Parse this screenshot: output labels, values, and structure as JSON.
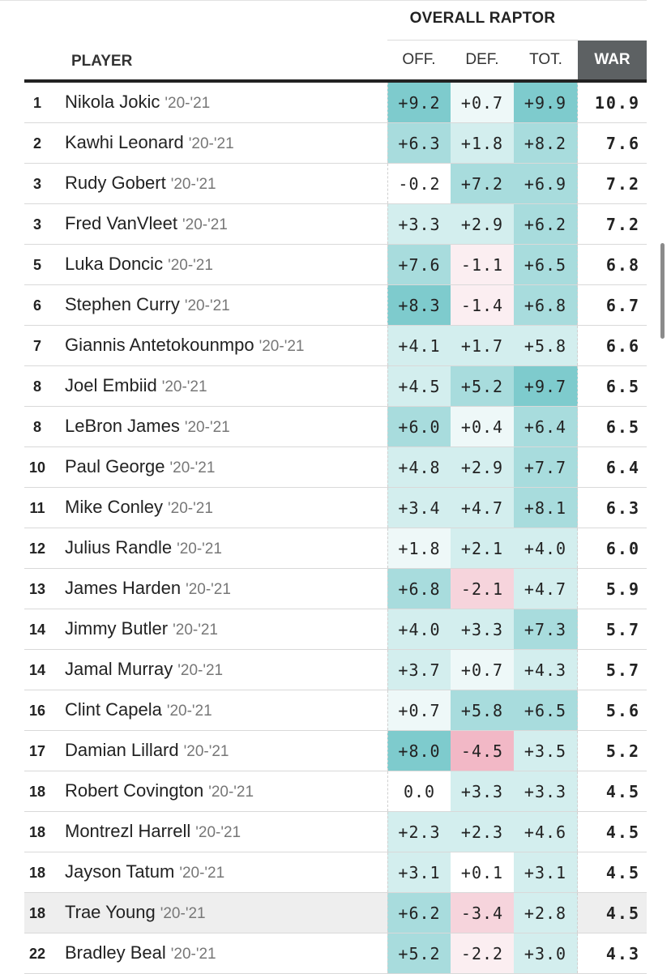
{
  "header": {
    "group": "OVERALL RAPTOR",
    "player": "PLAYER",
    "off": "OFF.",
    "def": "DEF.",
    "tot": "TOT.",
    "war": "WAR"
  },
  "colors": {
    "pos_strong": "#7ecbcd",
    "pos_mid": "#a8dcdd",
    "pos_light": "#d3eeee",
    "pos_faint": "#eef8f8",
    "neg_faint": "#fbeef1",
    "neg_light": "#f6d4dc",
    "neg_mid": "#f2b8c6",
    "header_war_bg": "#5d6163"
  },
  "rows": [
    {
      "rank": "1",
      "name": "Nikola Jokic",
      "season": "'20-'21",
      "off": "+9.2",
      "def": "+0.7",
      "tot": "+9.9",
      "war": "10.9",
      "offc": "pos_strong",
      "defc": "pos_faint",
      "totc": "pos_strong"
    },
    {
      "rank": "2",
      "name": "Kawhi Leonard",
      "season": "'20-'21",
      "off": "+6.3",
      "def": "+1.8",
      "tot": "+8.2",
      "war": "7.6",
      "offc": "pos_mid",
      "defc": "pos_light",
      "totc": "pos_mid"
    },
    {
      "rank": "3",
      "name": "Rudy Gobert",
      "season": "'20-'21",
      "off": "-0.2",
      "def": "+7.2",
      "tot": "+6.9",
      "war": "7.2",
      "offc": "none",
      "defc": "pos_mid",
      "totc": "pos_mid"
    },
    {
      "rank": "3",
      "name": "Fred VanVleet",
      "season": "'20-'21",
      "off": "+3.3",
      "def": "+2.9",
      "tot": "+6.2",
      "war": "7.2",
      "offc": "pos_light",
      "defc": "pos_light",
      "totc": "pos_mid"
    },
    {
      "rank": "5",
      "name": "Luka Doncic",
      "season": "'20-'21",
      "off": "+7.6",
      "def": "-1.1",
      "tot": "+6.5",
      "war": "6.8",
      "offc": "pos_mid",
      "defc": "neg_faint",
      "totc": "pos_mid"
    },
    {
      "rank": "6",
      "name": "Stephen Curry",
      "season": "'20-'21",
      "off": "+8.3",
      "def": "-1.4",
      "tot": "+6.8",
      "war": "6.7",
      "offc": "pos_strong",
      "defc": "neg_faint",
      "totc": "pos_mid"
    },
    {
      "rank": "7",
      "name": "Giannis Antetokounmpo",
      "season": "'20-'21",
      "off": "+4.1",
      "def": "+1.7",
      "tot": "+5.8",
      "war": "6.6",
      "offc": "pos_light",
      "defc": "pos_light",
      "totc": "pos_light"
    },
    {
      "rank": "8",
      "name": "Joel Embiid",
      "season": "'20-'21",
      "off": "+4.5",
      "def": "+5.2",
      "tot": "+9.7",
      "war": "6.5",
      "offc": "pos_light",
      "defc": "pos_mid",
      "totc": "pos_strong"
    },
    {
      "rank": "8",
      "name": "LeBron James",
      "season": "'20-'21",
      "off": "+6.0",
      "def": "+0.4",
      "tot": "+6.4",
      "war": "6.5",
      "offc": "pos_mid",
      "defc": "pos_faint",
      "totc": "pos_mid"
    },
    {
      "rank": "10",
      "name": "Paul George",
      "season": "'20-'21",
      "off": "+4.8",
      "def": "+2.9",
      "tot": "+7.7",
      "war": "6.4",
      "offc": "pos_light",
      "defc": "pos_light",
      "totc": "pos_mid"
    },
    {
      "rank": "11",
      "name": "Mike Conley",
      "season": "'20-'21",
      "off": "+3.4",
      "def": "+4.7",
      "tot": "+8.1",
      "war": "6.3",
      "offc": "pos_light",
      "defc": "pos_light",
      "totc": "pos_mid"
    },
    {
      "rank": "12",
      "name": "Julius Randle",
      "season": "'20-'21",
      "off": "+1.8",
      "def": "+2.1",
      "tot": "+4.0",
      "war": "6.0",
      "offc": "pos_faint",
      "defc": "pos_light",
      "totc": "pos_light"
    },
    {
      "rank": "13",
      "name": "James Harden",
      "season": "'20-'21",
      "off": "+6.8",
      "def": "-2.1",
      "tot": "+4.7",
      "war": "5.9",
      "offc": "pos_mid",
      "defc": "neg_light",
      "totc": "pos_light"
    },
    {
      "rank": "14",
      "name": "Jimmy Butler",
      "season": "'20-'21",
      "off": "+4.0",
      "def": "+3.3",
      "tot": "+7.3",
      "war": "5.7",
      "offc": "pos_light",
      "defc": "pos_light",
      "totc": "pos_mid"
    },
    {
      "rank": "14",
      "name": "Jamal Murray",
      "season": "'20-'21",
      "off": "+3.7",
      "def": "+0.7",
      "tot": "+4.3",
      "war": "5.7",
      "offc": "pos_light",
      "defc": "pos_faint",
      "totc": "pos_light"
    },
    {
      "rank": "16",
      "name": "Clint Capela",
      "season": "'20-'21",
      "off": "+0.7",
      "def": "+5.8",
      "tot": "+6.5",
      "war": "5.6",
      "offc": "pos_faint",
      "defc": "pos_mid",
      "totc": "pos_mid"
    },
    {
      "rank": "17",
      "name": "Damian Lillard",
      "season": "'20-'21",
      "off": "+8.0",
      "def": "-4.5",
      "tot": "+3.5",
      "war": "5.2",
      "offc": "pos_strong",
      "defc": "neg_mid",
      "totc": "pos_light"
    },
    {
      "rank": "18",
      "name": "Robert Covington",
      "season": "'20-'21",
      "off": "0.0",
      "def": "+3.3",
      "tot": "+3.3",
      "war": "4.5",
      "offc": "none",
      "defc": "pos_light",
      "totc": "pos_light"
    },
    {
      "rank": "18",
      "name": "Montrezl Harrell",
      "season": "'20-'21",
      "off": "+2.3",
      "def": "+2.3",
      "tot": "+4.6",
      "war": "4.5",
      "offc": "pos_light",
      "defc": "pos_light",
      "totc": "pos_light"
    },
    {
      "rank": "18",
      "name": "Jayson Tatum",
      "season": "'20-'21",
      "off": "+3.1",
      "def": "+0.1",
      "tot": "+3.1",
      "war": "4.5",
      "offc": "pos_light",
      "defc": "none",
      "totc": "pos_light"
    },
    {
      "rank": "18",
      "name": "Trae Young",
      "season": "'20-'21",
      "off": "+6.2",
      "def": "-3.4",
      "tot": "+2.8",
      "war": "4.5",
      "offc": "pos_mid",
      "defc": "neg_light",
      "totc": "pos_light",
      "highlight": true
    },
    {
      "rank": "22",
      "name": "Bradley Beal",
      "season": "'20-'21",
      "off": "+5.2",
      "def": "-2.2",
      "tot": "+3.0",
      "war": "4.3",
      "offc": "pos_mid",
      "defc": "neg_faint",
      "totc": "pos_light"
    }
  ]
}
